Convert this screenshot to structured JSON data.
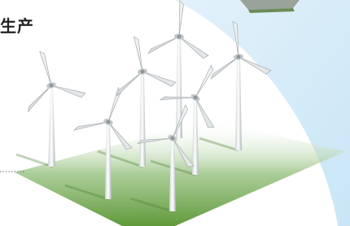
{
  "label": "生产"
}
